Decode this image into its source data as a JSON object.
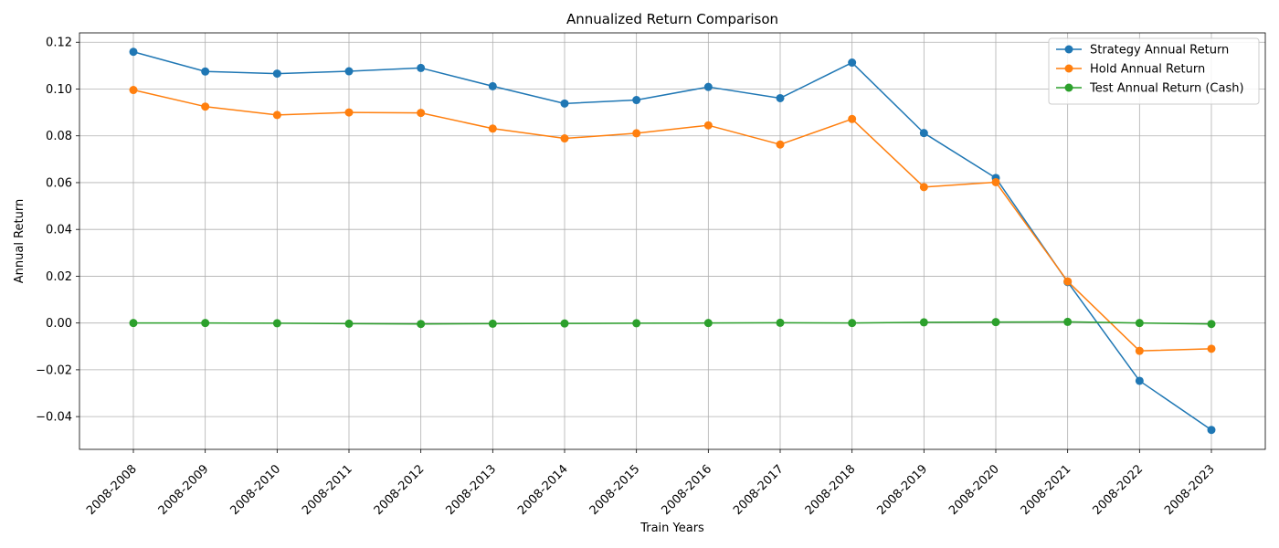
{
  "chart_data": {
    "type": "line",
    "title": "Annualized Return Comparison",
    "xlabel": "Train Years",
    "ylabel": "Annual Return",
    "categories": [
      "2008-2008",
      "2008-2009",
      "2008-2010",
      "2008-2011",
      "2008-2012",
      "2008-2013",
      "2008-2014",
      "2008-2015",
      "2008-2016",
      "2008-2017",
      "2008-2018",
      "2008-2019",
      "2008-2020",
      "2008-2021",
      "2008-2022",
      "2008-2023"
    ],
    "ylim": [
      -0.054,
      0.124
    ],
    "yticks": [
      -0.04,
      -0.02,
      0.0,
      0.02,
      0.04,
      0.06,
      0.08,
      0.1,
      0.12
    ],
    "ytick_labels": [
      "−0.04",
      "−0.02",
      "0.00",
      "0.02",
      "0.04",
      "0.06",
      "0.08",
      "0.10",
      "0.12"
    ],
    "grid": true,
    "legend_position": "top-right",
    "series": [
      {
        "name": "Strategy Annual Return",
        "color": "#1f77b4",
        "values": [
          0.1159,
          0.1075,
          0.1066,
          0.1076,
          0.109,
          0.1012,
          0.0938,
          0.0953,
          0.1009,
          0.0961,
          0.1113,
          0.0812,
          0.062,
          0.0175,
          -0.0247,
          -0.0457
        ]
      },
      {
        "name": "Hold Annual Return",
        "color": "#ff7f0e",
        "values": [
          0.0996,
          0.0925,
          0.0889,
          0.09,
          0.0898,
          0.0831,
          0.0789,
          0.0811,
          0.0845,
          0.0763,
          0.0872,
          0.0581,
          0.0602,
          0.0178,
          -0.0119,
          -0.011
        ]
      },
      {
        "name": "Test Annual Return (Cash)",
        "color": "#2ca02c",
        "values": [
          0.0,
          0.0,
          -0.0001,
          -0.0003,
          -0.0004,
          -0.0003,
          -0.0002,
          -0.0001,
          0.0,
          0.0001,
          0.0,
          0.0003,
          0.0004,
          0.0005,
          0.0,
          -0.0004
        ]
      }
    ]
  }
}
